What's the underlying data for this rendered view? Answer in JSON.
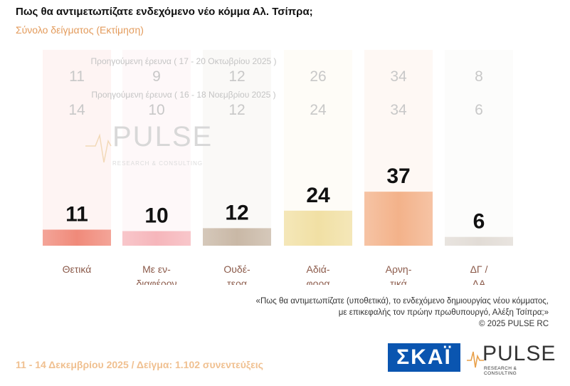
{
  "header": {
    "title": "Πως θα αντιμετωπίζατε ενδεχόμενο νέο κόμμα Αλ. Τσίπρα;",
    "subtitle": "Σύνολο δείγματος  (Εκτίμηση)"
  },
  "chart_data": {
    "type": "bar",
    "categories": [
      [
        "Θετικά"
      ],
      [
        "Με εν-",
        "διαφέρον"
      ],
      [
        "Ουδέ-",
        "τερα"
      ],
      [
        "Αδιά-",
        "φορα"
      ],
      [
        "Αρνη-",
        "τικά"
      ],
      [
        "ΔΓ /",
        "ΔΑ"
      ]
    ],
    "values": [
      11,
      10,
      12,
      24,
      37,
      6
    ],
    "bar_colors": [
      "#f08a7a",
      "#f6b6bb",
      "#c9b8a6",
      "#f1e0a4",
      "#f3b28a",
      "#e2dcd6"
    ],
    "ylim": [
      0,
      40
    ],
    "previous_surveys": [
      {
        "label": "Προηγούμενη έρευνα ( 17 - 20 Οκτωβρίου 2025 )",
        "values": [
          11,
          9,
          12,
          26,
          34,
          8
        ]
      },
      {
        "label": "Προηγούμενη έρευνα ( 16 - 18 Νοεμβρίου 2025 )",
        "values": [
          14,
          10,
          12,
          24,
          34,
          6
        ]
      }
    ]
  },
  "watermark": {
    "brand": "PULSE",
    "sub": "RESEARCH & CONSULTING"
  },
  "quote": {
    "line1": "«Πως θα αντιμετωπίζατε (υποθετικά), το ενδεχόμενο δημιουργίας νέου κόμματος,",
    "line2": "με επικεφαλής τον πρώην πρωθυπουργό, Αλέξη Τσίπρα;»",
    "line3": "©  2025  PULSE RC"
  },
  "footer": {
    "text": "11 - 14 Δεκεμβρίου 2025  /  Δείγμα:  1.102 συνεντεύξεις"
  },
  "logos": {
    "skai": "ΣΚΑΪ",
    "pulse": "PULSE",
    "pulse_sub": "RESEARCH & CONSULTING"
  }
}
